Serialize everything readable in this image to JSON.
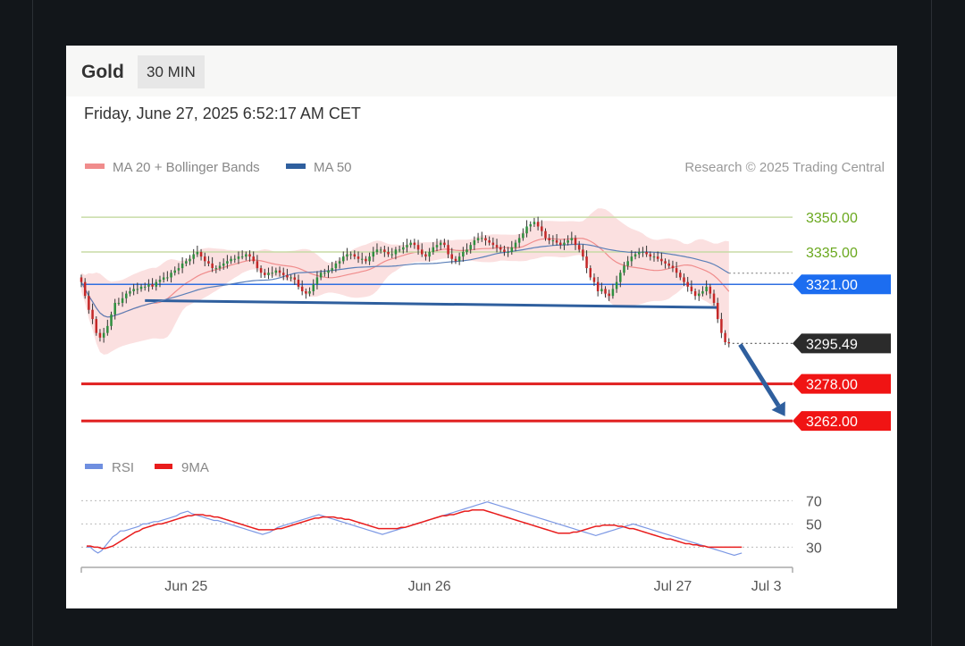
{
  "header": {
    "symbol": "Gold",
    "timeframe": "30 MIN",
    "datetime": "Friday, June 27, 2025 6:52:17 AM CET"
  },
  "chart_data": {
    "type": "candlestick",
    "legend": [
      {
        "label": "MA 20 + Bollinger Bands",
        "color": "#f08c8c"
      },
      {
        "label": "MA 50",
        "color": "#2f5f9e"
      }
    ],
    "credit": "Research © 2025 Trading Central",
    "y_range": [
      3252,
      3362
    ],
    "x_range": [
      0,
      190
    ],
    "x_ticks": [
      {
        "x": 28,
        "label": "Jun 25"
      },
      {
        "x": 93,
        "label": "Jun 26"
      },
      {
        "x": 158,
        "label": "Jul 27"
      },
      {
        "x": 183,
        "label": "Jul 3"
      }
    ],
    "last_price": 3295.49,
    "levels": [
      {
        "value": 3350.0,
        "label": "3350.00",
        "kind": "resistance",
        "line_color": "#c8dba6",
        "text_color": "#6aa81e"
      },
      {
        "value": 3335.0,
        "label": "3335.00",
        "kind": "resistance",
        "line_color": "#c8dba6",
        "text_color": "#6aa81e"
      },
      {
        "value": 3321.0,
        "label": "3321.00",
        "kind": "pivot",
        "line_color": "#2f6fe0",
        "tag_color": "#1c6df0"
      },
      {
        "value": 3295.49,
        "label": "3295.49",
        "kind": "last",
        "tag_color": "#2b2b2b"
      },
      {
        "value": 3278.0,
        "label": "3278.00",
        "kind": "support",
        "line_color": "#e01e1e",
        "tag_color": "#f01414"
      },
      {
        "value": 3262.0,
        "label": "3262.00",
        "kind": "support",
        "line_color": "#e01e1e",
        "tag_color": "#f01414"
      }
    ],
    "trendline": {
      "from": [
        17,
        3314
      ],
      "to": [
        170,
        3311
      ]
    },
    "forecast_arrow": {
      "from": [
        176,
        3295
      ],
      "to": [
        188,
        3264
      ]
    },
    "closes": [
      3322,
      3316,
      3310,
      3306,
      3300,
      3298,
      3300,
      3303,
      3308,
      3313,
      3313,
      3315,
      3317,
      3318,
      3319,
      3319,
      3320,
      3320,
      3321,
      3320,
      3322,
      3323,
      3324,
      3324,
      3326,
      3327,
      3328,
      3330,
      3331,
      3332,
      3334,
      3335,
      3333,
      3331,
      3330,
      3328,
      3328,
      3329,
      3330,
      3331,
      3332,
      3332,
      3333,
      3333,
      3334,
      3333,
      3331,
      3328,
      3326,
      3325,
      3326,
      3326,
      3327,
      3326,
      3325,
      3324,
      3324,
      3323,
      3320,
      3318,
      3317,
      3318,
      3321,
      3324,
      3326,
      3326,
      3327,
      3328,
      3330,
      3331,
      3333,
      3334,
      3334,
      3333,
      3332,
      3332,
      3331,
      3333,
      3335,
      3336,
      3336,
      3335,
      3334,
      3334,
      3336,
      3336,
      3337,
      3338,
      3339,
      3338,
      3336,
      3334,
      3333,
      3335,
      3337,
      3338,
      3339,
      3338,
      3334,
      3332,
      3331,
      3333,
      3335,
      3336,
      3338,
      3340,
      3341,
      3341,
      3340,
      3339,
      3338,
      3337,
      3336,
      3335,
      3335,
      3337,
      3339,
      3341,
      3343,
      3346,
      3347,
      3348,
      3346,
      3344,
      3341,
      3340,
      3340,
      3339,
      3338,
      3339,
      3340,
      3341,
      3338,
      3336,
      3333,
      3328,
      3324,
      3322,
      3318,
      3319,
      3317,
      3316,
      3319,
      3322,
      3326,
      3329,
      3331,
      3333,
      3334,
      3335,
      3335,
      3334,
      3333,
      3333,
      3332,
      3331,
      3330,
      3329,
      3328,
      3326,
      3324,
      3322,
      3320,
      3318,
      3316,
      3317,
      3318,
      3320,
      3317,
      3313,
      3306,
      3300,
      3296,
      3295.49
    ],
    "rsi_panel": {
      "legend": [
        {
          "label": "RSI",
          "color": "#6f8fe0"
        },
        {
          "label": "9MA",
          "color": "#e81c1c"
        }
      ],
      "y_range": [
        18,
        78
      ],
      "levels": [
        70,
        50,
        30
      ],
      "rsi": [
        30,
        30,
        27,
        25,
        27,
        31,
        35,
        39,
        41,
        44,
        44,
        45,
        46,
        47,
        48,
        50,
        50,
        51,
        52,
        52,
        53,
        54,
        55,
        56,
        57,
        59,
        60,
        61,
        59,
        58,
        57,
        56,
        55,
        54,
        53,
        53,
        52,
        51,
        50,
        49,
        48,
        47,
        46,
        45,
        44,
        43,
        42,
        41,
        42,
        43,
        45,
        47,
        48,
        49,
        50,
        51,
        52,
        53,
        54,
        55,
        56,
        57,
        58,
        57,
        56,
        55,
        54,
        53,
        52,
        51,
        50,
        49,
        48,
        47,
        46,
        45,
        44,
        43,
        42,
        41,
        42,
        43,
        44,
        45,
        46,
        47,
        48,
        49,
        50,
        51,
        52,
        53,
        54,
        55,
        56,
        57,
        58,
        59,
        60,
        61,
        62,
        63,
        64,
        65,
        66,
        67,
        68,
        69,
        68,
        67,
        66,
        65,
        64,
        63,
        62,
        61,
        60,
        59,
        58,
        57,
        56,
        55,
        54,
        53,
        52,
        51,
        50,
        49,
        48,
        47,
        46,
        45,
        44,
        43,
        42,
        41,
        40,
        41,
        42,
        43,
        44,
        45,
        46,
        47,
        48,
        49,
        50,
        49,
        48,
        47,
        46,
        45,
        44,
        43,
        42,
        41,
        40,
        39,
        38,
        37,
        36,
        35,
        34,
        33,
        32,
        31,
        30,
        29,
        28,
        27,
        26,
        25,
        24,
        23,
        24,
        25
      ],
      "ma9": [
        31,
        31,
        30,
        30,
        29,
        29,
        30,
        31,
        33,
        35,
        37,
        39,
        41,
        43,
        44,
        46,
        47,
        48,
        49,
        50,
        50,
        51,
        52,
        53,
        54,
        55,
        56,
        57,
        57,
        58,
        58,
        58,
        57,
        57,
        56,
        56,
        55,
        54,
        53,
        52,
        51,
        50,
        49,
        48,
        47,
        46,
        45,
        45,
        45,
        45,
        45,
        46,
        46,
        47,
        48,
        49,
        50,
        51,
        52,
        53,
        54,
        55,
        55,
        56,
        56,
        56,
        56,
        55,
        55,
        54,
        54,
        53,
        52,
        51,
        50,
        49,
        48,
        47,
        46,
        46,
        46,
        46,
        46,
        46,
        47,
        47,
        48,
        49,
        50,
        51,
        52,
        53,
        54,
        55,
        56,
        57,
        57,
        58,
        58,
        59,
        60,
        61,
        61,
        62,
        62,
        62,
        62,
        61,
        60,
        59,
        58,
        57,
        56,
        55,
        54,
        53,
        52,
        51,
        50,
        49,
        48,
        47,
        46,
        45,
        44,
        43,
        42,
        42,
        42,
        42,
        43,
        43,
        44,
        45,
        46,
        47,
        48,
        48,
        49,
        49,
        49,
        49,
        48,
        48,
        47,
        46,
        46,
        45,
        44,
        43,
        42,
        41,
        40,
        39,
        38,
        37,
        37,
        36,
        35,
        34,
        33,
        33,
        32,
        32,
        31,
        31,
        30,
        30,
        30,
        30,
        30,
        30,
        30,
        30,
        30,
        30
      ]
    }
  }
}
